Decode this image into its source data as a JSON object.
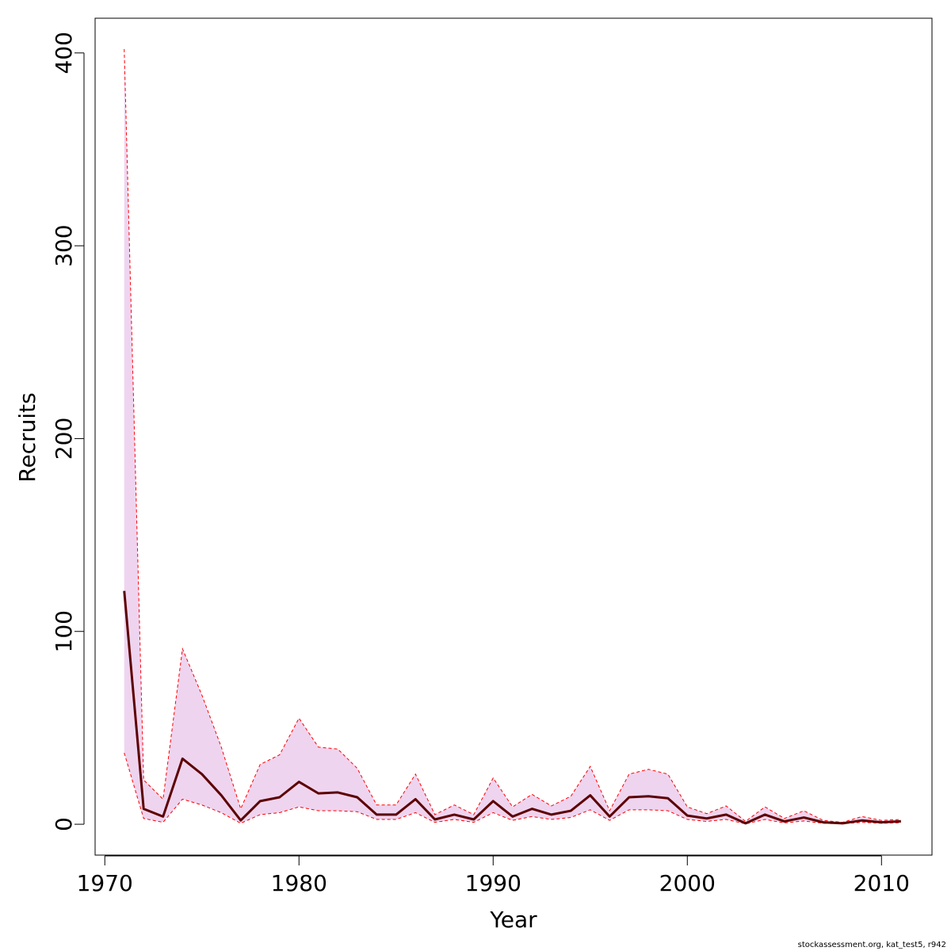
{
  "chart_data": {
    "type": "area",
    "xlabel": "Year",
    "ylabel": "Recruits",
    "xlim": [
      1969.5,
      2012.6
    ],
    "ylim": [
      -16,
      418
    ],
    "x_ticks": [
      1970,
      1980,
      1990,
      2000,
      2010
    ],
    "y_ticks": [
      0,
      100,
      200,
      300,
      400
    ],
    "grid": false,
    "legend": "none",
    "x": [
      1971,
      1972,
      1973,
      1974,
      1975,
      1976,
      1977,
      1978,
      1979,
      1980,
      1981,
      1982,
      1983,
      1984,
      1985,
      1986,
      1987,
      1988,
      1989,
      1990,
      1991,
      1992,
      1993,
      1994,
      1995,
      1996,
      1997,
      1998,
      1999,
      2000,
      2001,
      2002,
      2003,
      2004,
      2005,
      2006,
      2007,
      2008,
      2009,
      2010,
      2011
    ],
    "series": [
      {
        "role": "estimate",
        "color": "#5c0000",
        "values": [
          121,
          8,
          4,
          34,
          26,
          15,
          2,
          12,
          14,
          22,
          16,
          16.5,
          14,
          5,
          5,
          13,
          2.5,
          5,
          2.5,
          12,
          4,
          8,
          5,
          7,
          15,
          4,
          14,
          14.5,
          13.5,
          4.5,
          3,
          5,
          0.5,
          5,
          1.5,
          3.5,
          1,
          0.5,
          2,
          1,
          1.5
        ]
      },
      {
        "role": "upper-bound",
        "color": "#ff0000",
        "values": [
          402,
          23,
          13,
          91,
          67,
          40,
          8,
          31,
          36,
          55,
          40,
          39,
          29,
          10,
          10,
          26,
          5,
          10,
          5,
          24,
          9,
          15.5,
          9.5,
          14.5,
          30,
          7,
          26,
          28.5,
          26,
          9,
          5.5,
          9.5,
          1.5,
          9,
          3,
          7,
          2,
          1,
          4,
          2,
          2.5
        ]
      },
      {
        "role": "lower-bound",
        "color": "#ff0000",
        "values": [
          37,
          3,
          1,
          13,
          10,
          6,
          0.5,
          5,
          6,
          9,
          7,
          7,
          6.5,
          2.5,
          2.5,
          6,
          1,
          2.5,
          1,
          6,
          2,
          4,
          2.5,
          3.5,
          7.5,
          2,
          7.5,
          7.5,
          7,
          2.5,
          1.5,
          2.5,
          0.2,
          2.5,
          0.7,
          1.7,
          0.5,
          0.3,
          1,
          0.5,
          0.8
        ]
      }
    ],
    "band_fill": "#efd4ef"
  },
  "credit": "stockassessment.org, kat_test5, r942"
}
